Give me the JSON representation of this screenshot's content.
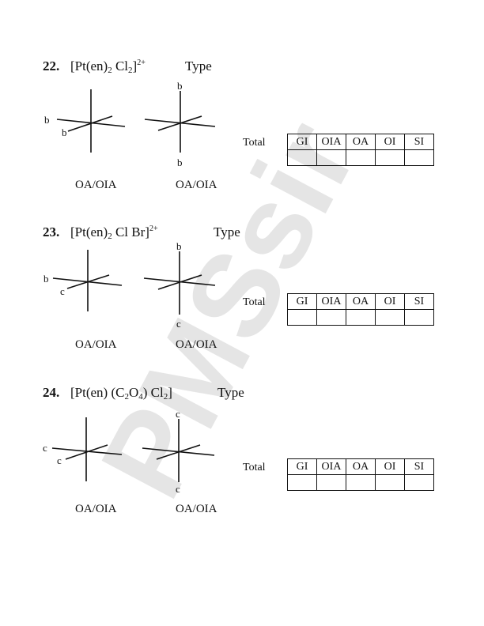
{
  "watermark": "PMSsir",
  "table_headers": [
    "GI",
    "OIA",
    "OA",
    "OI",
    "SI"
  ],
  "total_label": "Total",
  "oa_label": "OA/OIA",
  "questions": [
    {
      "number": "22.",
      "formula_parts": [
        "[Pt(en)",
        "2",
        " Cl",
        "2",
        "]",
        "2+"
      ],
      "type_label": "Type",
      "left_labels": [
        "b",
        "b"
      ],
      "right_labels": [
        "b",
        "b"
      ]
    },
    {
      "number": "23.",
      "formula_parts": [
        "[Pt(en)",
        "2",
        " Cl Br]",
        "",
        "",
        "2+"
      ],
      "type_label": "Type",
      "left_labels": [
        "b",
        "c"
      ],
      "right_labels": [
        "b",
        "c"
      ]
    },
    {
      "number": "24.",
      "formula_parts": [
        "[Pt(en) (C",
        "2",
        "O",
        "4",
        ") Cl",
        "2",
        "]"
      ],
      "type_label": "Type",
      "left_labels": [
        "c",
        "c"
      ],
      "right_labels": [
        "c",
        "c"
      ]
    }
  ]
}
